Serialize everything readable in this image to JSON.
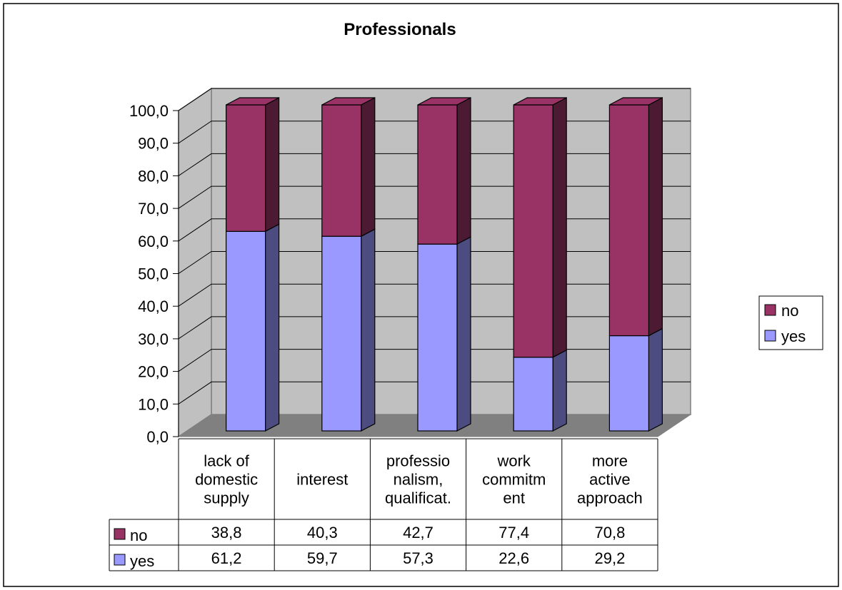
{
  "chart_data": {
    "type": "bar",
    "stacked": true,
    "three_d": true,
    "title": "Professionals",
    "categories": [
      [
        "lack of",
        "domestic",
        "supply"
      ],
      [
        "interest"
      ],
      [
        "professio",
        "nalism,",
        "qualificat."
      ],
      [
        "work",
        "commitm",
        "ent"
      ],
      [
        "more",
        "active",
        "approach"
      ]
    ],
    "series": [
      {
        "name": "yes",
        "color": "#9999ff",
        "side_color": "#4c4c80",
        "values": [
          61.2,
          59.7,
          57.3,
          22.6,
          29.2
        ],
        "labels": [
          "61,2",
          "59,7",
          "57,3",
          "22,6",
          "29,2"
        ]
      },
      {
        "name": "no",
        "color": "#993366",
        "side_color": "#4c1a33",
        "values": [
          38.8,
          40.3,
          42.7,
          77.4,
          70.8
        ],
        "labels": [
          "38,8",
          "40,3",
          "42,7",
          "77,4",
          "70,8"
        ]
      }
    ],
    "ylim": [
      0,
      100
    ],
    "yticks": [
      "0,0",
      "10,0",
      "20,0",
      "30,0",
      "40,0",
      "50,0",
      "60,0",
      "70,0",
      "80,0",
      "90,0",
      "100,0"
    ],
    "grid": true,
    "legend": {
      "position": "right",
      "entries": [
        "no",
        "yes"
      ]
    },
    "data_table": {
      "rows": [
        "no",
        "yes"
      ]
    }
  }
}
